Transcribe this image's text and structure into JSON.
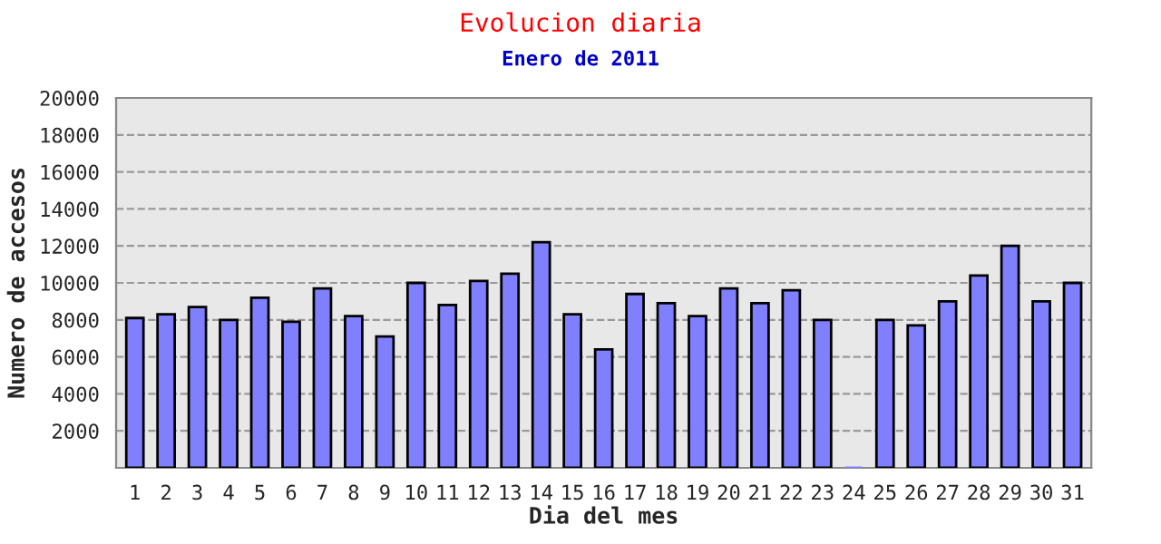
{
  "chart_data": {
    "type": "bar",
    "title": "Evolucion diaria",
    "subtitle": "Enero de 2011",
    "xlabel": "Dia del mes",
    "ylabel": "Numero de accesos",
    "categories": [
      "1",
      "2",
      "3",
      "4",
      "5",
      "6",
      "7",
      "8",
      "9",
      "10",
      "11",
      "12",
      "13",
      "14",
      "15",
      "16",
      "17",
      "18",
      "19",
      "20",
      "21",
      "22",
      "23",
      "24",
      "25",
      "26",
      "27",
      "28",
      "29",
      "30",
      "31"
    ],
    "values": [
      8100,
      8300,
      8700,
      8000,
      9200,
      7900,
      9700,
      8200,
      7100,
      10000,
      8800,
      10100,
      10500,
      12200,
      8300,
      6400,
      9400,
      8900,
      8200,
      9700,
      8900,
      9600,
      8000,
      0,
      8000,
      7700,
      9000,
      10400,
      12000,
      9000,
      10000
    ],
    "color": "#8080ff",
    "ylim": [
      0,
      20000
    ],
    "yticks": [
      2000,
      4000,
      6000,
      8000,
      10000,
      12000,
      14000,
      16000,
      18000,
      20000
    ],
    "grid": "y"
  }
}
